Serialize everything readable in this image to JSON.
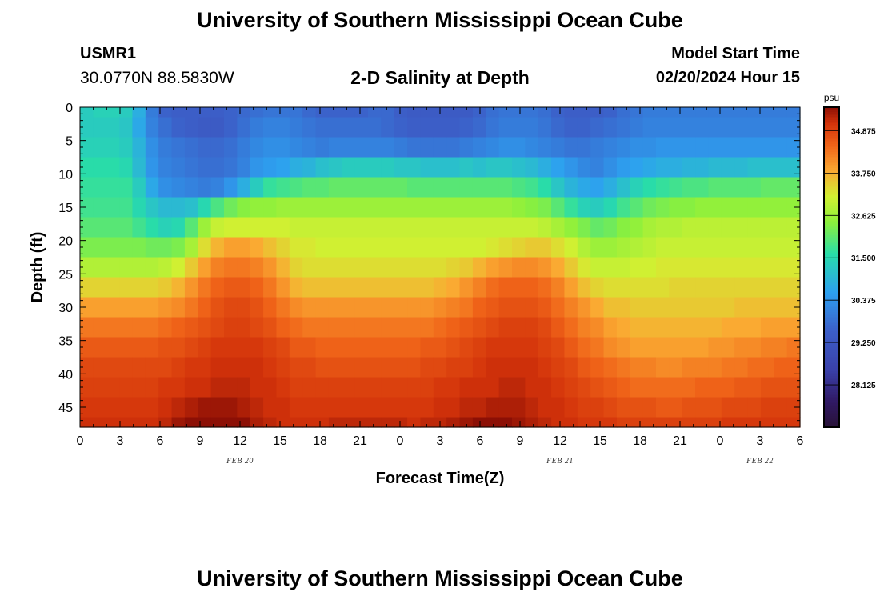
{
  "header": {
    "title": "University of Southern Mississippi Ocean Cube",
    "station": "USMR1",
    "coordinates": "30.0770N  88.5830W",
    "subtitle": "2-D Salinity at Depth",
    "model_start_label": "Model Start Time",
    "model_start_value": "02/20/2024 Hour 15"
  },
  "footer": {
    "title": "University of Southern Mississippi Ocean Cube"
  },
  "chart_data": {
    "type": "heatmap",
    "title": "2-D Salinity at Depth",
    "xlabel": "Forecast Time(Z)",
    "ylabel": "Depth (ft)",
    "x_hours": [
      0,
      1,
      2,
      3,
      4,
      5,
      6,
      7,
      8,
      9,
      10,
      11,
      12,
      13,
      14,
      15,
      16,
      17,
      18,
      19,
      20,
      21,
      22,
      23,
      24,
      25,
      26,
      27,
      28,
      29,
      30,
      31,
      32,
      33,
      34,
      35,
      36,
      37,
      38,
      39,
      40,
      41,
      42,
      43,
      44,
      45,
      46,
      47,
      48,
      49,
      50,
      51,
      52,
      53,
      54
    ],
    "x_tick_labels": [
      "0",
      "3",
      "6",
      "9",
      "12",
      "15",
      "18",
      "21",
      "0",
      "3",
      "6",
      "9",
      "12",
      "15",
      "18",
      "21",
      "0",
      "3",
      "6"
    ],
    "date_labels": [
      {
        "label": "FEB 20",
        "tick_index": 4
      },
      {
        "label": "FEB 21",
        "tick_index": 12
      },
      {
        "label": "FEB 22",
        "tick_index": 17
      }
    ],
    "ylim": [
      0,
      48
    ],
    "y_tick_labels": [
      "0",
      "5",
      "10",
      "15",
      "20",
      "25",
      "30",
      "35",
      "40",
      "45"
    ],
    "y_tick_values": [
      0,
      5,
      10,
      15,
      20,
      25,
      30,
      35,
      40,
      45
    ],
    "depths_ft": [
      0,
      3,
      6,
      9,
      12,
      15,
      18,
      21,
      24,
      27,
      30,
      33,
      36,
      39,
      42,
      45,
      48
    ],
    "salinity_psu": [
      [
        31.3,
        31.4,
        31.4,
        31.3,
        30.8,
        30.0,
        29.6,
        29.5,
        29.5,
        29.5,
        29.5,
        29.6,
        29.7,
        29.8,
        29.9,
        29.9,
        29.9,
        29.7,
        29.6,
        29.6,
        29.6,
        29.6,
        29.7,
        29.7,
        29.5,
        29.4,
        29.4,
        29.4,
        29.4,
        29.4,
        29.6,
        29.8,
        29.9,
        29.9,
        29.9,
        29.8,
        29.6,
        29.5,
        29.5,
        29.5,
        29.6,
        29.8,
        29.9,
        30.0,
        30.0,
        30.0,
        30.0,
        30.0,
        30.0,
        30.0,
        30.0,
        30.0,
        30.0,
        30.0,
        30.0
      ],
      [
        31.3,
        31.3,
        31.3,
        31.2,
        30.7,
        30.1,
        29.8,
        29.6,
        29.5,
        29.4,
        29.4,
        29.6,
        29.8,
        30.0,
        30.1,
        30.1,
        30.0,
        29.9,
        29.8,
        29.8,
        29.8,
        29.8,
        29.8,
        29.7,
        29.6,
        29.5,
        29.5,
        29.5,
        29.5,
        29.6,
        29.7,
        29.9,
        30.0,
        30.0,
        30.0,
        29.9,
        29.7,
        29.6,
        29.6,
        29.7,
        29.8,
        29.9,
        30.0,
        30.1,
        30.1,
        30.1,
        30.1,
        30.1,
        30.1,
        30.1,
        30.1,
        30.1,
        30.1,
        30.1,
        30.1
      ],
      [
        31.4,
        31.4,
        31.4,
        31.3,
        30.9,
        30.3,
        30.0,
        29.9,
        29.8,
        29.7,
        29.7,
        29.8,
        30.0,
        30.2,
        30.3,
        30.3,
        30.2,
        30.1,
        30.0,
        30.1,
        30.1,
        30.1,
        30.1,
        30.1,
        30.0,
        29.9,
        29.9,
        29.9,
        29.9,
        30.0,
        30.1,
        30.2,
        30.3,
        30.3,
        30.2,
        30.1,
        30.0,
        29.9,
        29.9,
        30.0,
        30.1,
        30.2,
        30.3,
        30.3,
        30.4,
        30.4,
        30.4,
        30.4,
        30.4,
        30.4,
        30.4,
        30.4,
        30.4,
        30.4,
        30.4
      ],
      [
        31.6,
        31.6,
        31.6,
        31.5,
        31.0,
        30.4,
        30.1,
        30.0,
        29.9,
        29.8,
        29.8,
        29.9,
        30.1,
        30.4,
        30.5,
        30.6,
        30.8,
        30.9,
        31.1,
        31.2,
        31.3,
        31.3,
        31.3,
        31.3,
        31.2,
        31.2,
        31.1,
        31.1,
        31.1,
        31.2,
        31.1,
        31.2,
        31.2,
        31.1,
        31.0,
        30.8,
        30.6,
        30.4,
        30.2,
        30.1,
        30.3,
        30.5,
        30.6,
        30.7,
        30.8,
        30.8,
        30.9,
        30.9,
        31.0,
        31.0,
        31.0,
        31.1,
        31.1,
        31.1,
        31.1
      ],
      [
        31.7,
        31.7,
        31.7,
        31.7,
        31.3,
        30.7,
        30.3,
        30.2,
        30.1,
        30.0,
        30.1,
        30.4,
        30.8,
        31.3,
        31.7,
        31.8,
        31.9,
        32.0,
        32.0,
        32.1,
        32.1,
        32.1,
        32.1,
        32.1,
        32.1,
        32.0,
        32.0,
        32.0,
        32.0,
        32.0,
        32.0,
        32.0,
        32.0,
        31.9,
        31.8,
        31.6,
        31.2,
        30.9,
        30.7,
        30.6,
        30.8,
        31.1,
        31.4,
        31.6,
        31.7,
        31.8,
        31.9,
        31.9,
        32.0,
        32.0,
        32.0,
        32.0,
        32.1,
        32.1,
        32.1
      ],
      [
        31.8,
        31.8,
        31.8,
        31.8,
        31.5,
        31.2,
        31.0,
        31.0,
        31.1,
        31.5,
        31.9,
        32.2,
        32.4,
        32.5,
        32.5,
        32.6,
        32.6,
        32.6,
        32.6,
        32.6,
        32.6,
        32.6,
        32.6,
        32.6,
        32.6,
        32.6,
        32.6,
        32.6,
        32.6,
        32.6,
        32.6,
        32.6,
        32.6,
        32.5,
        32.4,
        32.3,
        32.0,
        31.7,
        31.4,
        31.3,
        31.5,
        31.8,
        32.0,
        32.2,
        32.3,
        32.4,
        32.4,
        32.5,
        32.5,
        32.5,
        32.5,
        32.5,
        32.5,
        32.5,
        32.5
      ],
      [
        32.0,
        32.0,
        32.0,
        32.0,
        31.8,
        31.6,
        31.4,
        31.5,
        32.0,
        32.6,
        33.0,
        33.1,
        33.1,
        33.1,
        33.1,
        33.1,
        33.0,
        33.0,
        33.0,
        33.0,
        33.0,
        33.0,
        33.0,
        33.0,
        33.0,
        33.0,
        33.0,
        33.0,
        33.0,
        33.0,
        33.0,
        33.0,
        33.0,
        33.0,
        33.0,
        32.9,
        32.7,
        32.5,
        32.3,
        32.1,
        32.2,
        32.4,
        32.5,
        32.7,
        32.8,
        32.8,
        32.9,
        32.9,
        32.9,
        32.9,
        32.9,
        32.9,
        32.9,
        32.9,
        32.9
      ],
      [
        32.3,
        32.3,
        32.3,
        32.3,
        32.3,
        32.2,
        32.2,
        32.3,
        32.7,
        33.3,
        33.7,
        33.9,
        33.9,
        33.8,
        33.6,
        33.4,
        33.2,
        33.2,
        33.1,
        33.1,
        33.1,
        33.1,
        33.1,
        33.1,
        33.1,
        33.1,
        33.1,
        33.1,
        33.1,
        33.1,
        33.1,
        33.2,
        33.3,
        33.4,
        33.5,
        33.5,
        33.3,
        33.1,
        32.8,
        32.6,
        32.6,
        32.7,
        32.8,
        32.9,
        33.0,
        33.0,
        33.0,
        33.0,
        33.0,
        33.0,
        33.0,
        33.0,
        33.0,
        33.0,
        33.0
      ],
      [
        32.8,
        32.8,
        32.8,
        32.8,
        32.8,
        32.8,
        32.9,
        33.1,
        33.5,
        33.9,
        34.2,
        34.3,
        34.3,
        34.2,
        34.0,
        33.7,
        33.4,
        33.3,
        33.3,
        33.3,
        33.3,
        33.3,
        33.3,
        33.3,
        33.3,
        33.3,
        33.3,
        33.3,
        33.4,
        33.5,
        33.7,
        33.9,
        34.0,
        34.1,
        34.1,
        34.0,
        33.8,
        33.5,
        33.2,
        33.0,
        33.0,
        33.0,
        33.1,
        33.1,
        33.2,
        33.2,
        33.2,
        33.2,
        33.2,
        33.2,
        33.2,
        33.2,
        33.2,
        33.2,
        33.2
      ],
      [
        33.4,
        33.4,
        33.4,
        33.4,
        33.4,
        33.4,
        33.5,
        33.7,
        34.0,
        34.3,
        34.5,
        34.6,
        34.6,
        34.5,
        34.3,
        34.0,
        33.7,
        33.6,
        33.6,
        33.6,
        33.6,
        33.6,
        33.6,
        33.6,
        33.6,
        33.6,
        33.6,
        33.7,
        33.8,
        34.0,
        34.2,
        34.4,
        34.5,
        34.5,
        34.5,
        34.4,
        34.2,
        33.9,
        33.6,
        33.4,
        33.3,
        33.3,
        33.3,
        33.3,
        33.3,
        33.4,
        33.4,
        33.4,
        33.4,
        33.4,
        33.4,
        33.4,
        33.4,
        33.4,
        33.4
      ],
      [
        33.9,
        33.9,
        33.9,
        33.9,
        33.9,
        33.9,
        34.0,
        34.1,
        34.3,
        34.5,
        34.7,
        34.8,
        34.8,
        34.7,
        34.5,
        34.3,
        34.1,
        34.0,
        34.0,
        34.0,
        34.0,
        34.0,
        34.0,
        34.0,
        34.0,
        34.0,
        34.0,
        34.1,
        34.2,
        34.3,
        34.5,
        34.6,
        34.7,
        34.7,
        34.7,
        34.6,
        34.4,
        34.2,
        34.0,
        33.8,
        33.6,
        33.6,
        33.5,
        33.5,
        33.5,
        33.5,
        33.5,
        33.5,
        33.5,
        33.5,
        33.6,
        33.6,
        33.6,
        33.6,
        33.6
      ],
      [
        34.3,
        34.3,
        34.3,
        34.3,
        34.3,
        34.3,
        34.4,
        34.5,
        34.6,
        34.7,
        34.8,
        34.9,
        34.9,
        34.8,
        34.7,
        34.5,
        34.4,
        34.3,
        34.3,
        34.3,
        34.3,
        34.3,
        34.3,
        34.3,
        34.3,
        34.3,
        34.3,
        34.4,
        34.5,
        34.6,
        34.7,
        34.8,
        34.9,
        34.9,
        34.9,
        34.8,
        34.6,
        34.4,
        34.2,
        34.1,
        33.9,
        33.8,
        33.7,
        33.7,
        33.7,
        33.7,
        33.7,
        33.7,
        33.7,
        33.8,
        33.8,
        33.8,
        33.9,
        33.9,
        33.9
      ],
      [
        34.6,
        34.6,
        34.6,
        34.6,
        34.6,
        34.6,
        34.7,
        34.7,
        34.8,
        34.9,
        35.0,
        35.0,
        35.0,
        35.0,
        34.9,
        34.8,
        34.6,
        34.6,
        34.5,
        34.5,
        34.5,
        34.5,
        34.5,
        34.5,
        34.5,
        34.5,
        34.6,
        34.6,
        34.7,
        34.8,
        34.9,
        35.0,
        35.0,
        35.0,
        35.0,
        34.9,
        34.8,
        34.6,
        34.4,
        34.3,
        34.1,
        34.0,
        33.9,
        33.9,
        33.9,
        33.9,
        33.9,
        33.9,
        34.0,
        34.0,
        34.1,
        34.1,
        34.2,
        34.2,
        34.3
      ],
      [
        34.8,
        34.8,
        34.8,
        34.8,
        34.8,
        34.8,
        34.8,
        34.9,
        35.0,
        35.0,
        35.1,
        35.1,
        35.1,
        35.1,
        35.0,
        34.9,
        34.8,
        34.8,
        34.7,
        34.7,
        34.7,
        34.7,
        34.7,
        34.7,
        34.7,
        34.7,
        34.8,
        34.8,
        34.9,
        34.9,
        35.0,
        35.1,
        35.1,
        35.1,
        35.1,
        35.0,
        34.9,
        34.8,
        34.6,
        34.5,
        34.4,
        34.3,
        34.2,
        34.2,
        34.1,
        34.1,
        34.2,
        34.2,
        34.2,
        34.3,
        34.3,
        34.4,
        34.4,
        34.5,
        34.5
      ],
      [
        34.9,
        34.9,
        34.9,
        34.9,
        34.9,
        34.9,
        35.0,
        35.0,
        35.1,
        35.1,
        35.2,
        35.2,
        35.2,
        35.1,
        35.1,
        35.0,
        34.9,
        34.9,
        34.9,
        34.9,
        34.9,
        34.9,
        34.9,
        34.9,
        34.9,
        34.9,
        34.9,
        35.0,
        35.0,
        35.1,
        35.1,
        35.1,
        35.2,
        35.2,
        35.1,
        35.1,
        35.0,
        34.9,
        34.8,
        34.7,
        34.6,
        34.5,
        34.4,
        34.4,
        34.4,
        34.4,
        34.4,
        34.5,
        34.5,
        34.5,
        34.6,
        34.6,
        34.7,
        34.7,
        34.7
      ],
      [
        35.0,
        35.0,
        35.0,
        35.0,
        35.0,
        35.0,
        35.1,
        35.2,
        35.3,
        35.4,
        35.4,
        35.4,
        35.3,
        35.2,
        35.1,
        35.1,
        35.0,
        35.0,
        35.0,
        35.0,
        35.0,
        35.0,
        35.0,
        35.0,
        35.0,
        35.0,
        35.0,
        35.1,
        35.1,
        35.2,
        35.2,
        35.3,
        35.3,
        35.3,
        35.2,
        35.1,
        35.1,
        35.0,
        34.9,
        34.9,
        34.8,
        34.7,
        34.7,
        34.7,
        34.6,
        34.6,
        34.7,
        34.7,
        34.7,
        34.8,
        34.8,
        34.8,
        34.9,
        34.9,
        34.9
      ],
      [
        35.1,
        35.1,
        35.1,
        35.1,
        35.1,
        35.1,
        35.2,
        35.4,
        35.6,
        35.7,
        35.7,
        35.6,
        35.5,
        35.3,
        35.2,
        35.1,
        35.1,
        35.1,
        35.1,
        35.2,
        35.2,
        35.2,
        35.2,
        35.2,
        35.2,
        35.1,
        35.2,
        35.2,
        35.3,
        35.4,
        35.5,
        35.5,
        35.5,
        35.4,
        35.3,
        35.2,
        35.1,
        35.1,
        35.0,
        35.0,
        35.0,
        34.9,
        34.9,
        34.9,
        34.9,
        34.9,
        34.9,
        34.9,
        34.9,
        35.0,
        35.0,
        35.0,
        35.0,
        35.0,
        35.0
      ]
    ],
    "colorbar": {
      "unit": "psu",
      "min": 27.0,
      "max": 35.5,
      "tick_labels": [
        "34.875",
        "33.750",
        "32.625",
        "31.500",
        "30.375",
        "29.250",
        "28.125"
      ],
      "tick_values": [
        34.875,
        33.75,
        32.625,
        31.5,
        30.375,
        29.25,
        28.125
      ]
    }
  }
}
